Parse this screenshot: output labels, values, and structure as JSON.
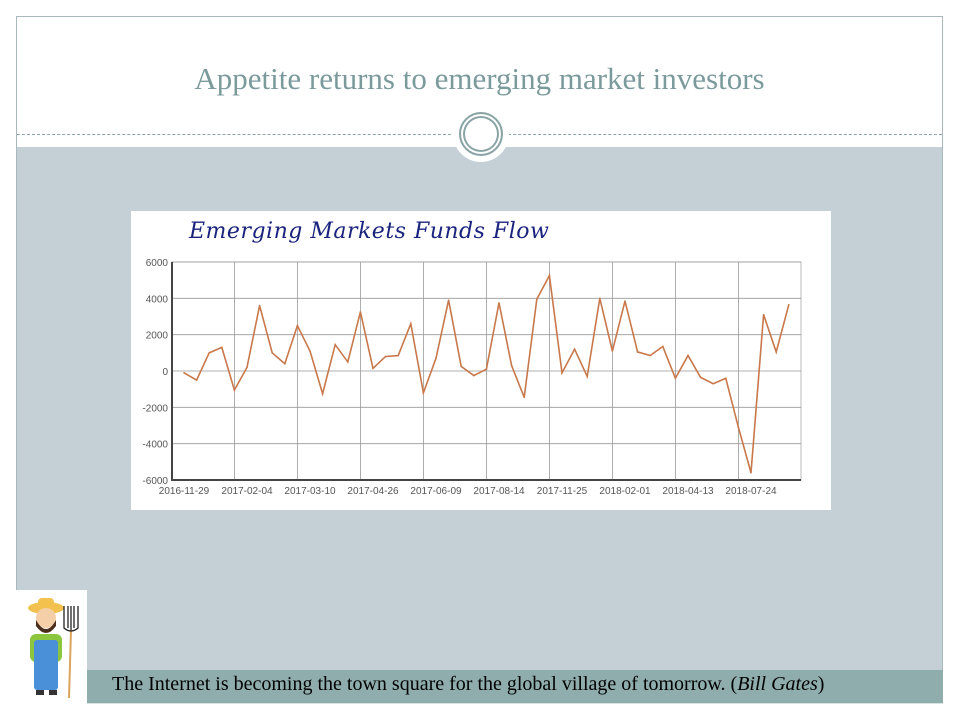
{
  "slide": {
    "title": "Appetite returns to emerging market investors",
    "quote_text": "The Internet is becoming the town square for the global village of tomorrow. (",
    "quote_author": "Bill Gates",
    "quote_close": ")"
  },
  "colors": {
    "accent": "#7a9a9c",
    "body_bg": "#c5d0d6",
    "quote_bg": "#8fadad",
    "line": "#c8784a"
  },
  "chart_data": {
    "type": "line",
    "title": "Emerging Markets Funds Flow",
    "xlabel": "",
    "ylabel": "",
    "ylim": [
      -6000,
      6000
    ],
    "yticks": [
      6000,
      4000,
      2000,
      0,
      -2000,
      -4000,
      -6000
    ],
    "xtick_labels": [
      "2016-11-29",
      "2017-02-04",
      "2017-03-10",
      "2017-04-26",
      "2017-06-09",
      "2017-08-14",
      "2017-11-25",
      "2018-02-01",
      "2018-04-13",
      "2018-07-24"
    ],
    "grid": true,
    "series": [
      {
        "name": "Funds Flow",
        "values": [
          -100,
          -500,
          1000,
          1300,
          -1050,
          200,
          3600,
          1000,
          400,
          2500,
          1100,
          -1250,
          1450,
          500,
          3250,
          150,
          800,
          850,
          2600,
          -1200,
          700,
          3900,
          250,
          -250,
          100,
          3750,
          300,
          -1450,
          3950,
          5250,
          -100,
          1200,
          -300,
          4000,
          1100,
          3850,
          1050,
          850,
          1350,
          -400,
          850,
          -350,
          -700,
          -400,
          -3100,
          -5600,
          3100,
          1050,
          3650
        ]
      }
    ]
  }
}
